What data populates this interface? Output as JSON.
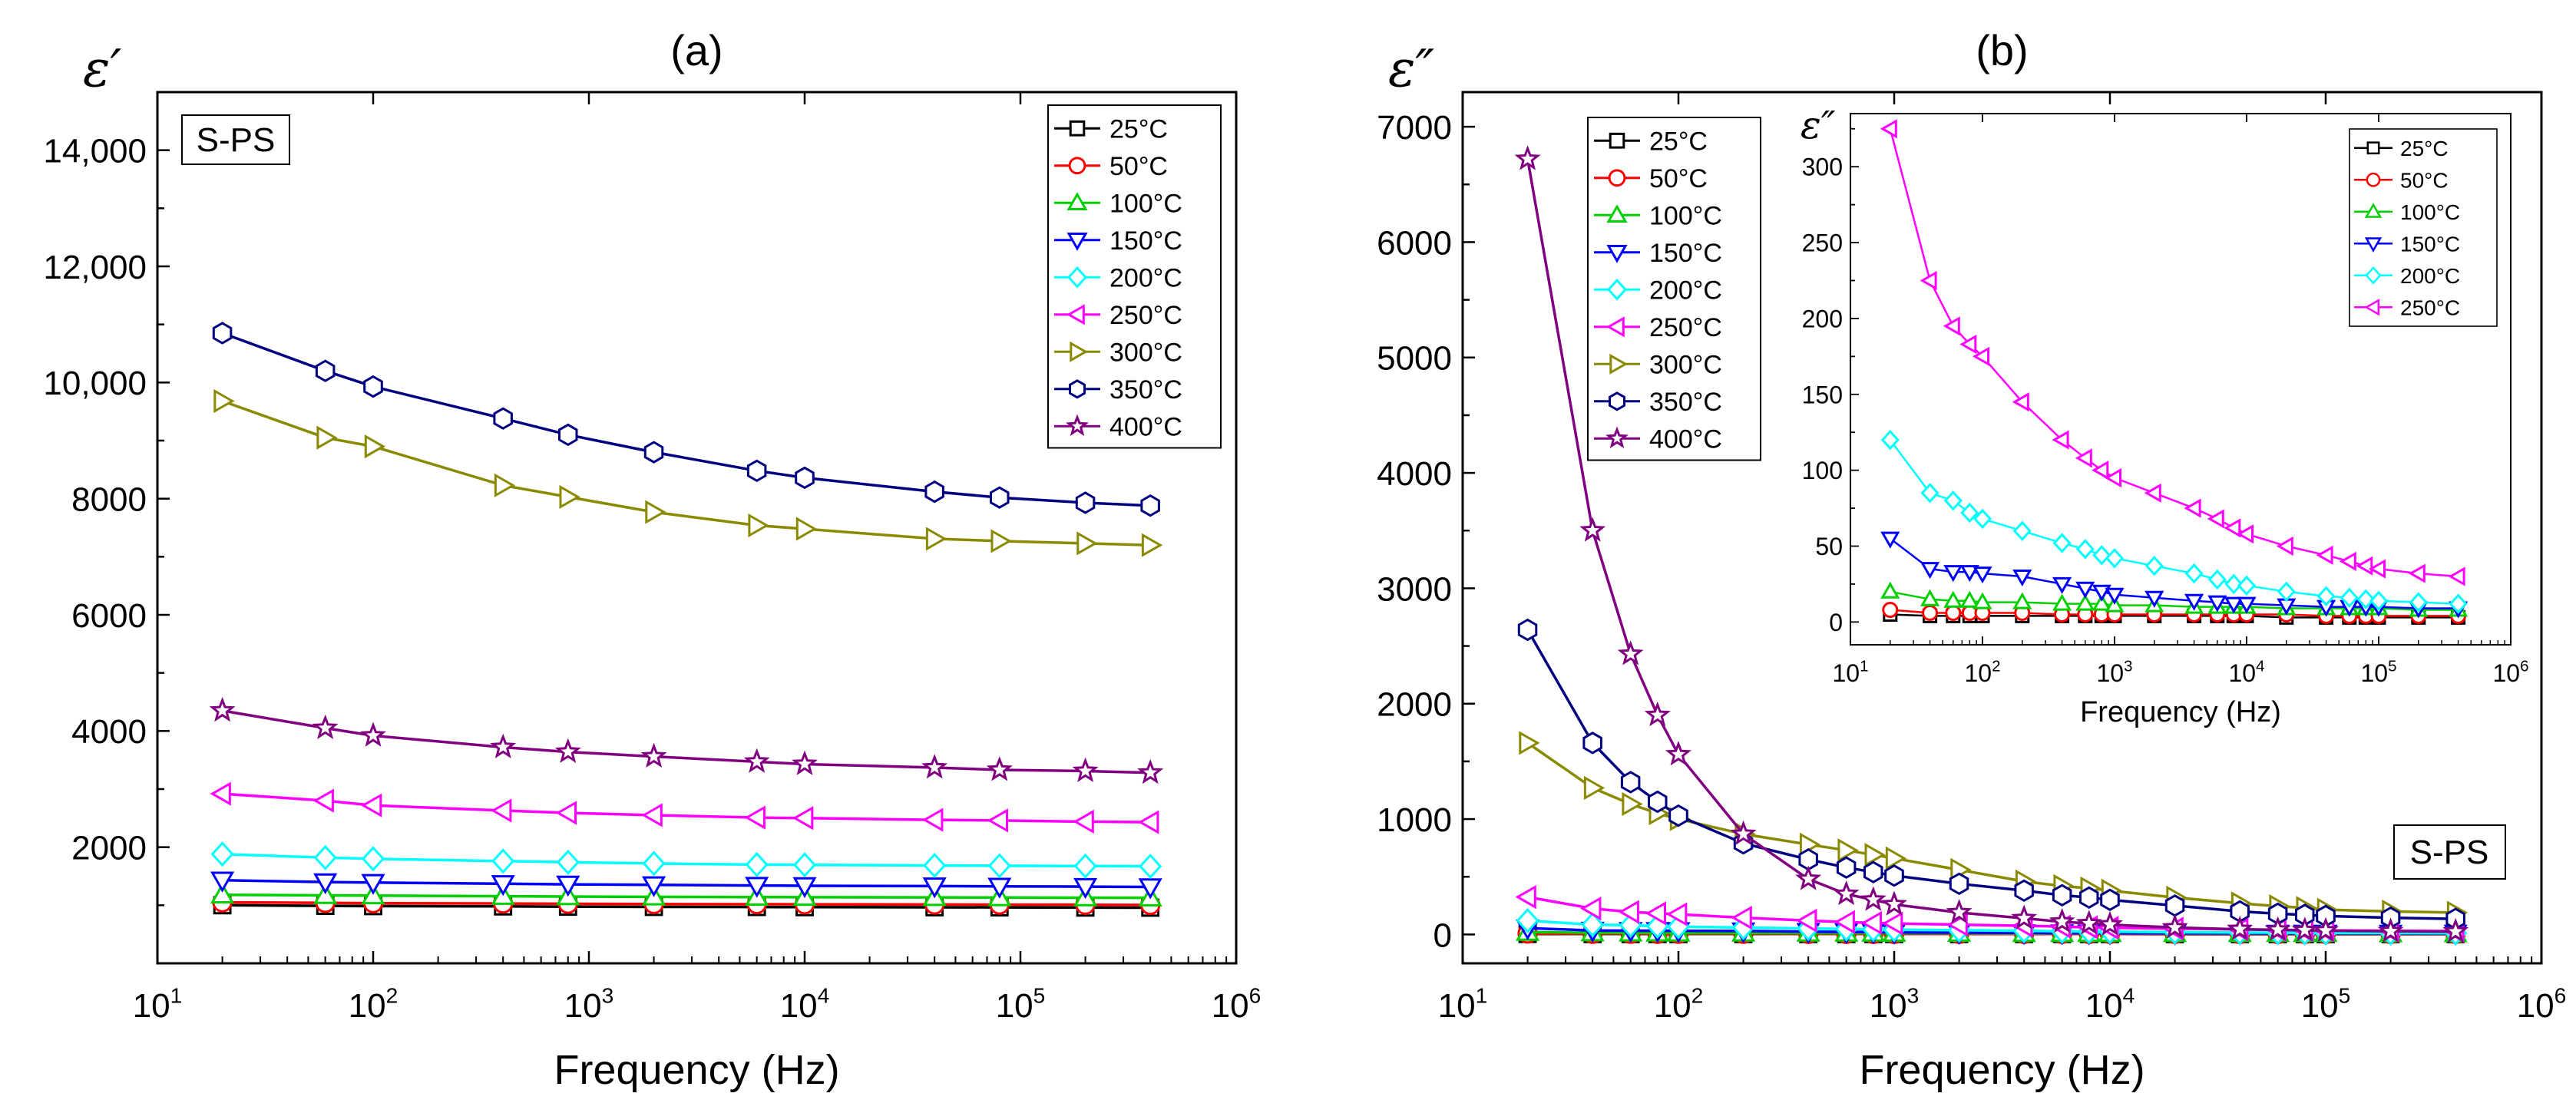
{
  "chart_data": [
    {
      "type": "line",
      "panel_label": "(a)",
      "ylabel": "ε′",
      "xlabel": "Frequency (Hz)",
      "x_scale": "log",
      "xlim": [
        10,
        1000000
      ],
      "ylim": [
        0,
        15000
      ],
      "xticks": [
        "10¹",
        "10²",
        "10³",
        "10⁴",
        "10⁵",
        "10⁶"
      ],
      "yticks": [
        "2000",
        "4000",
        "6000",
        "8000",
        "10,000",
        "12,000",
        "14,000"
      ],
      "ytick_values": [
        2000,
        4000,
        6000,
        8000,
        10000,
        12000,
        14000
      ],
      "grid": false,
      "legend_position": "top-right",
      "annotation": "S-PS",
      "x": [
        20,
        60,
        100,
        400,
        800,
        2000,
        6000,
        10000,
        40000,
        80000,
        200000,
        400000
      ],
      "series": [
        {
          "name": "25°C",
          "color": "#000000",
          "marker": "square",
          "values": [
            1000,
            990,
            985,
            980,
            975,
            972,
            970,
            968,
            965,
            963,
            960,
            958
          ]
        },
        {
          "name": "50°C",
          "color": "#ff0000",
          "marker": "circle",
          "values": [
            1050,
            1040,
            1035,
            1030,
            1025,
            1020,
            1018,
            1016,
            1012,
            1010,
            1008,
            1005
          ]
        },
        {
          "name": "100°C",
          "color": "#00d000",
          "marker": "triangle-up",
          "values": [
            1180,
            1170,
            1165,
            1155,
            1150,
            1145,
            1140,
            1138,
            1135,
            1132,
            1130,
            1128
          ]
        },
        {
          "name": "150°C",
          "color": "#0000ff",
          "marker": "triangle-down",
          "values": [
            1430,
            1400,
            1390,
            1370,
            1360,
            1350,
            1340,
            1335,
            1330,
            1325,
            1320,
            1315
          ]
        },
        {
          "name": "200°C",
          "color": "#00ffff",
          "marker": "diamond",
          "values": [
            1880,
            1820,
            1800,
            1760,
            1740,
            1720,
            1700,
            1695,
            1685,
            1680,
            1675,
            1670
          ]
        },
        {
          "name": "250°C",
          "color": "#ff00ff",
          "marker": "triangle-left",
          "values": [
            2920,
            2800,
            2720,
            2630,
            2590,
            2550,
            2510,
            2500,
            2470,
            2460,
            2440,
            2430
          ]
        },
        {
          "name": "300°C",
          "color": "#8a8a00",
          "marker": "triangle-right",
          "values": [
            9680,
            9050,
            8900,
            8230,
            8030,
            7770,
            7540,
            7480,
            7310,
            7270,
            7230,
            7200
          ]
        },
        {
          "name": "350°C",
          "color": "#000080",
          "marker": "hexagon",
          "values": [
            10850,
            10200,
            9930,
            9380,
            9100,
            8800,
            8480,
            8360,
            8120,
            8020,
            7930,
            7880
          ]
        },
        {
          "name": "400°C",
          "color": "#800080",
          "marker": "star",
          "values": [
            4350,
            4050,
            3920,
            3720,
            3640,
            3560,
            3470,
            3430,
            3370,
            3330,
            3310,
            3280
          ]
        }
      ]
    },
    {
      "type": "line",
      "panel_label": "(b)",
      "ylabel": "ε″",
      "xlabel": "Frequency (Hz)",
      "x_scale": "log",
      "xlim": [
        10,
        1000000
      ],
      "ylim": [
        -250,
        7300
      ],
      "xticks": [
        "10¹",
        "10²",
        "10³",
        "10⁴",
        "10⁵",
        "10⁶"
      ],
      "yticks": [
        "0",
        "1000",
        "2000",
        "3000",
        "4000",
        "5000",
        "6000",
        "7000"
      ],
      "ytick_values": [
        0,
        1000,
        2000,
        3000,
        4000,
        5000,
        6000,
        7000
      ],
      "grid": false,
      "legend_position": "top-left",
      "annotation": "S-PS",
      "x": [
        20,
        40,
        60,
        80,
        100,
        200,
        400,
        600,
        800,
        1000,
        2000,
        4000,
        6000,
        8000,
        10000,
        20000,
        40000,
        60000,
        80000,
        100000,
        200000,
        400000
      ],
      "series": [
        {
          "name": "25°C",
          "color": "#000000",
          "marker": "square",
          "values": [
            5,
            4,
            4,
            4,
            4,
            4,
            4,
            4,
            4,
            4,
            4,
            4,
            4,
            4,
            4,
            3,
            3,
            3,
            3,
            3,
            3,
            3
          ]
        },
        {
          "name": "50°C",
          "color": "#ff0000",
          "marker": "circle",
          "values": [
            8,
            6,
            6,
            6,
            6,
            6,
            5,
            5,
            5,
            5,
            5,
            5,
            5,
            5,
            5,
            5,
            4,
            4,
            4,
            4,
            4,
            4
          ]
        },
        {
          "name": "100°C",
          "color": "#00d000",
          "marker": "triangle-up",
          "values": [
            20,
            15,
            14,
            14,
            13,
            13,
            12,
            12,
            12,
            11,
            11,
            10,
            10,
            10,
            10,
            9,
            9,
            9,
            9,
            9,
            8,
            8
          ]
        },
        {
          "name": "150°C",
          "color": "#0000ff",
          "marker": "triangle-down",
          "values": [
            55,
            35,
            33,
            33,
            32,
            30,
            25,
            22,
            20,
            18,
            16,
            14,
            13,
            12,
            12,
            11,
            10,
            10,
            10,
            10,
            9,
            9
          ]
        },
        {
          "name": "200°C",
          "color": "#00ffff",
          "marker": "diamond",
          "values": [
            120,
            85,
            80,
            72,
            68,
            60,
            52,
            48,
            44,
            42,
            37,
            32,
            28,
            25,
            24,
            20,
            17,
            16,
            15,
            14,
            13,
            12
          ]
        },
        {
          "name": "250°C",
          "color": "#ff00ff",
          "marker": "triangle-left",
          "values": [
            325,
            225,
            195,
            183,
            175,
            145,
            120,
            108,
            100,
            95,
            85,
            75,
            68,
            62,
            58,
            50,
            44,
            40,
            37,
            35,
            32,
            30
          ]
        },
        {
          "name": "300°C",
          "color": "#8a8a00",
          "marker": "triangle-right",
          "values": [
            1660,
            1270,
            1130,
            1050,
            1000,
            870,
            780,
            730,
            690,
            660,
            560,
            460,
            420,
            400,
            380,
            320,
            270,
            245,
            230,
            215,
            200,
            190
          ]
        },
        {
          "name": "350°C",
          "color": "#000080",
          "marker": "hexagon",
          "values": [
            2640,
            1660,
            1320,
            1150,
            1030,
            790,
            650,
            580,
            540,
            510,
            440,
            380,
            340,
            320,
            300,
            250,
            200,
            180,
            170,
            160,
            145,
            135
          ]
        },
        {
          "name": "400°C",
          "color": "#800080",
          "marker": "star",
          "values": [
            6720,
            3500,
            2430,
            1900,
            1560,
            870,
            480,
            350,
            300,
            260,
            190,
            140,
            110,
            95,
            85,
            60,
            45,
            40,
            36,
            33,
            28,
            25
          ]
        }
      ],
      "inset": {
        "type": "line",
        "ylabel": "ε″",
        "xlabel": "Frequency (Hz)",
        "x_scale": "log",
        "xlim": [
          10,
          1000000
        ],
        "ylim": [
          -15,
          335
        ],
        "xticks": [
          "10¹",
          "10²",
          "10³",
          "10⁴",
          "10⁵",
          "10⁶"
        ],
        "yticks": [
          "0",
          "50",
          "100",
          "150",
          "200",
          "250",
          "300"
        ],
        "ytick_values": [
          0,
          50,
          100,
          150,
          200,
          250,
          300
        ],
        "legend_position": "top-right",
        "series_names": [
          "25°C",
          "50°C",
          "100°C",
          "150°C",
          "200°C",
          "250°C"
        ]
      }
    }
  ]
}
